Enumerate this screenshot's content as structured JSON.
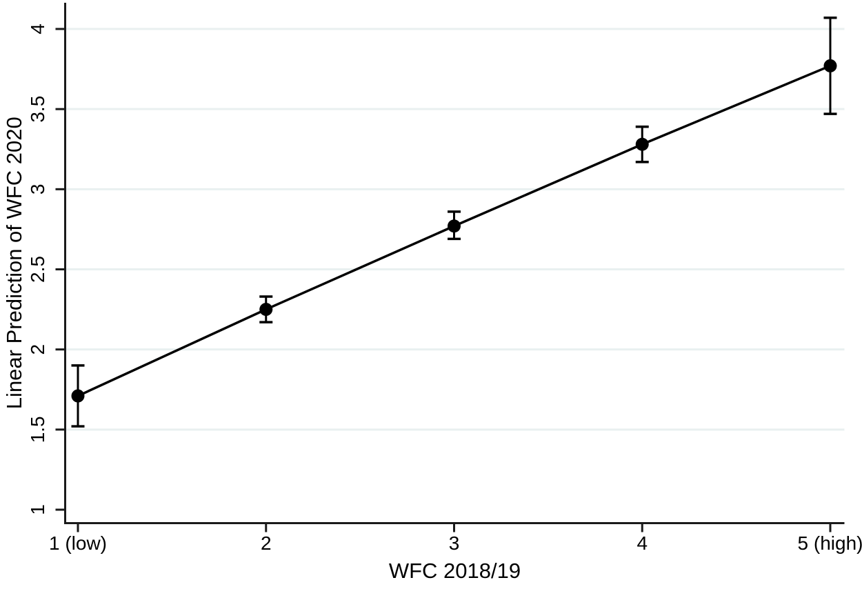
{
  "chart_data": {
    "type": "line",
    "title": "",
    "xlabel": "WFC 2018/19",
    "ylabel": "Linear Prediction of WFC 2020",
    "categories": [
      "1 (low)",
      "2",
      "3",
      "4",
      "5 (high)"
    ],
    "series": [
      {
        "name": "Linear Prediction of WFC 2020",
        "values": [
          1.71,
          2.25,
          2.77,
          3.28,
          3.77
        ],
        "ci_low": [
          1.52,
          2.17,
          2.69,
          3.17,
          3.47
        ],
        "ci_high": [
          1.9,
          2.33,
          2.86,
          3.39,
          4.07
        ]
      }
    ],
    "ylim": [
      1,
      4
    ],
    "yticks": [
      1,
      1.5,
      2,
      2.5,
      3,
      3.5,
      4
    ],
    "ytick_labels": [
      "1",
      "1.5",
      "2",
      "2.5",
      "3",
      "3.5",
      "4"
    ],
    "grid_ticks": [
      1.5,
      2,
      2.5,
      3,
      3.5,
      4
    ],
    "grid": "horizontal",
    "legend": "none",
    "marker": "filled-circle",
    "error_bars": true,
    "colors": {
      "line": "#000000",
      "marker": "#000000",
      "error_bar": "#000000",
      "axis": "#1a1a1a",
      "grid": "#e9f0f0",
      "background": "#ffffff",
      "text": "#000000"
    }
  }
}
